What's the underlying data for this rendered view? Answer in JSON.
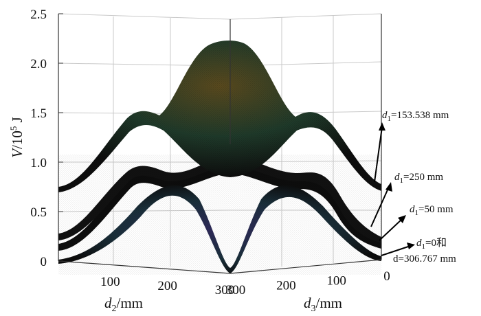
{
  "chart_data": {
    "type": "surface",
    "ylabel": {
      "var": "V",
      "unit_base": "/10",
      "exp": "5",
      "unit": " J"
    },
    "xlabel_left": {
      "var": "d",
      "sub": "2",
      "unit": "/mm"
    },
    "xlabel_right": {
      "var": "d",
      "sub": "3",
      "unit": "/mm"
    },
    "zlim": [
      0,
      2.5
    ],
    "z_ticks": [
      "0",
      "0.5",
      "1.0",
      "1.5",
      "2.0",
      "2.5"
    ],
    "x_ticks_left": [
      "100",
      "200",
      "300"
    ],
    "x_ticks_right": [
      "300",
      "200",
      "100",
      "0"
    ],
    "grid": true,
    "series": [
      {
        "d1_label": "d1=153.538 mm",
        "peak": 2.2,
        "edge": 0.75,
        "saddle_side": 1.5,
        "saddle_center": 0.85
      },
      {
        "d1_label": "d1=250 mm",
        "peak": 1.0,
        "edge": 0.2,
        "saddle_side": 0.9,
        "saddle_center": 0.15
      },
      {
        "d1_label": "d1=50 mm",
        "peak": 0.95,
        "edge": 0.18,
        "saddle_side": 0.85,
        "saddle_center": 0.1
      },
      {
        "d1_label": "d1=0和d=306.767 mm",
        "peak": 0.9,
        "edge": 0.05,
        "saddle_side": 0.8,
        "saddle_center": 0.0
      }
    ],
    "annotations": [
      {
        "pre": "d",
        "sub": "1",
        "text": "=153.538 mm"
      },
      {
        "pre": "d",
        "sub": "1",
        "text": "=250 mm"
      },
      {
        "pre": "d",
        "sub": "1",
        "text": "=50 mm"
      },
      {
        "pre": "d",
        "sub": "1",
        "text": "=0和",
        "line2": "d=306.767 mm"
      }
    ]
  }
}
